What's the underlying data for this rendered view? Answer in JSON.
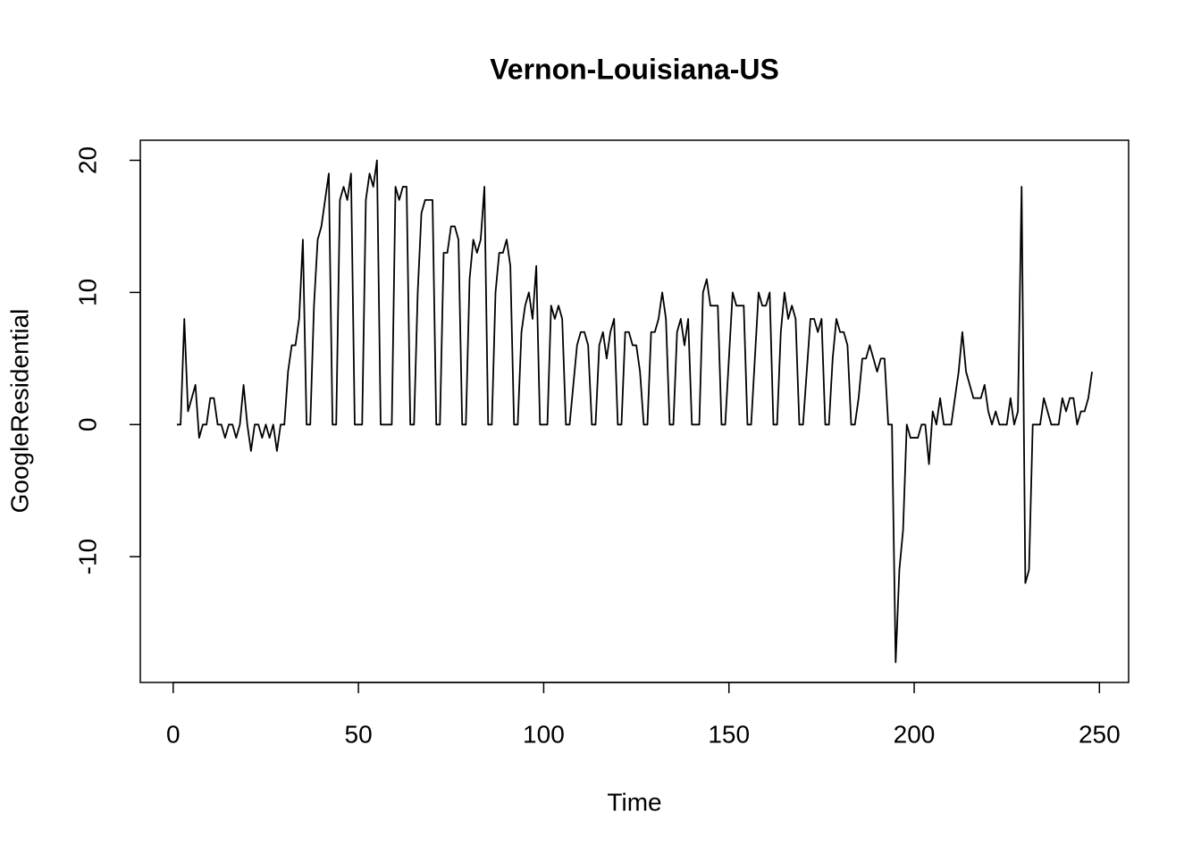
{
  "chart_data": {
    "type": "line",
    "title": "Vernon-Louisiana-US",
    "x_label": "Time",
    "y_label": "GoogleResidential",
    "x": [
      1,
      2,
      3,
      4,
      5,
      6,
      7,
      8,
      9,
      10,
      11,
      12,
      13,
      14,
      15,
      16,
      17,
      18,
      19,
      20,
      21,
      22,
      23,
      24,
      25,
      26,
      27,
      28,
      29,
      30,
      31,
      32,
      33,
      34,
      35,
      36,
      37,
      38,
      39,
      40,
      41,
      42,
      43,
      44,
      45,
      46,
      47,
      48,
      49,
      50,
      51,
      52,
      53,
      54,
      55,
      56,
      57,
      58,
      59,
      60,
      61,
      62,
      63,
      64,
      65,
      66,
      67,
      68,
      69,
      70,
      71,
      72,
      73,
      74,
      75,
      76,
      77,
      78,
      79,
      80,
      81,
      82,
      83,
      84,
      85,
      86,
      87,
      88,
      89,
      90,
      91,
      92,
      93,
      94,
      95,
      96,
      97,
      98,
      99,
      100,
      101,
      102,
      103,
      104,
      105,
      106,
      107,
      108,
      109,
      110,
      111,
      112,
      113,
      114,
      115,
      116,
      117,
      118,
      119,
      120,
      121,
      122,
      123,
      124,
      125,
      126,
      127,
      128,
      129,
      130,
      131,
      132,
      133,
      134,
      135,
      136,
      137,
      138,
      139,
      140,
      141,
      142,
      143,
      144,
      145,
      146,
      147,
      148,
      149,
      150,
      151,
      152,
      153,
      154,
      155,
      156,
      157,
      158,
      159,
      160,
      161,
      162,
      163,
      164,
      165,
      166,
      167,
      168,
      169,
      170,
      171,
      172,
      173,
      174,
      175,
      176,
      177,
      178,
      179,
      180,
      181,
      182,
      183,
      184,
      185,
      186,
      187,
      188,
      189,
      190,
      191,
      192,
      193,
      194,
      195,
      196,
      197,
      198,
      199,
      200,
      201,
      202,
      203,
      204,
      205,
      206,
      207,
      208,
      209,
      210,
      211,
      212,
      213,
      214,
      215,
      216,
      217,
      218,
      219,
      220,
      221,
      222,
      223,
      224,
      225,
      226,
      227,
      228,
      229,
      230,
      231,
      232,
      233,
      234,
      235,
      236,
      237,
      238,
      239,
      240,
      241,
      242,
      243,
      244,
      245,
      246,
      247,
      248
    ],
    "series": [
      {
        "color": "#000000",
        "values": [
          0,
          0,
          8,
          1,
          2,
          3,
          -1,
          0,
          0,
          2,
          2,
          0,
          0,
          -1,
          0,
          0,
          -1,
          0,
          3,
          0,
          -2,
          0,
          0,
          -1,
          0,
          -1,
          0,
          -2,
          0,
          0,
          4,
          6,
          6,
          8,
          14,
          0,
          0,
          9,
          14,
          15,
          17,
          19,
          0,
          0,
          17,
          18,
          17,
          19,
          0,
          0,
          0,
          17,
          19,
          18,
          20,
          0,
          0,
          0,
          0,
          18,
          17,
          18,
          18,
          0,
          0,
          10,
          16,
          17,
          17,
          17,
          0,
          0,
          13,
          13,
          15,
          15,
          14,
          0,
          0,
          11,
          14,
          13,
          14,
          18,
          0,
          0,
          10,
          13,
          13,
          14,
          12,
          0,
          0,
          7,
          9,
          10,
          8,
          12,
          0,
          0,
          0,
          9,
          8,
          9,
          8,
          0,
          0,
          3,
          6,
          7,
          7,
          6,
          0,
          0,
          6,
          7,
          5,
          7,
          8,
          0,
          0,
          7,
          7,
          6,
          6,
          4,
          0,
          0,
          7,
          7,
          8,
          10,
          8,
          0,
          0,
          7,
          8,
          6,
          8,
          0,
          0,
          0,
          10,
          11,
          9,
          9,
          9,
          0,
          0,
          5,
          10,
          9,
          9,
          9,
          0,
          0,
          5,
          10,
          9,
          9,
          10,
          0,
          0,
          7,
          10,
          8,
          9,
          8,
          0,
          0,
          4,
          8,
          8,
          7,
          8,
          0,
          0,
          5,
          8,
          7,
          7,
          6,
          0,
          0,
          2,
          5,
          5,
          6,
          5,
          4,
          5,
          5,
          0,
          0,
          -18,
          -11,
          -8,
          0,
          -1,
          -1,
          -1,
          0,
          0,
          -3,
          1,
          0,
          2,
          0,
          0,
          0,
          2,
          4,
          7,
          4,
          3,
          2,
          2,
          2,
          3,
          1,
          0,
          1,
          0,
          0,
          0,
          2,
          0,
          1,
          18,
          -12,
          -11,
          0,
          0,
          0,
          2,
          1,
          0,
          0,
          0,
          2,
          1,
          2,
          2,
          0,
          1,
          1,
          2,
          4
        ]
      }
    ],
    "xlim": [
      -8.88,
      257.88
    ],
    "ylim": [
      -19.52,
      21.52
    ],
    "xticks": [
      0,
      50,
      100,
      150,
      200,
      250
    ],
    "yticks": [
      -10,
      0,
      10,
      20
    ]
  }
}
